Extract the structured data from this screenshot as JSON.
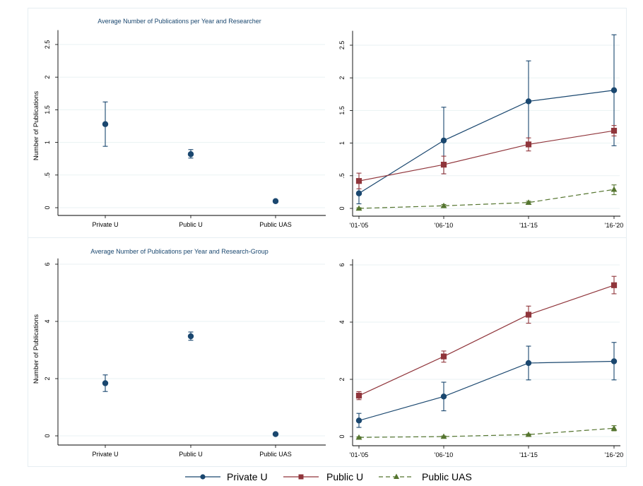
{
  "colors": {
    "private_u": "#1a476f",
    "public_u": "#90353b",
    "public_uas": "#55752f",
    "grid": "#eaf2f3",
    "axis": "#000000"
  },
  "legend": {
    "position": "bottom-center",
    "items": [
      {
        "label": "Private U",
        "marker": "circle",
        "line": "solid",
        "series": "private_u"
      },
      {
        "label": "Public U",
        "marker": "square",
        "line": "solid",
        "series": "public_u"
      },
      {
        "label": "Public UAS",
        "marker": "triangle",
        "line": "dashed",
        "series": "public_uas"
      }
    ]
  },
  "chart_data": [
    {
      "id": "researcher-overall",
      "type": "scatter",
      "title": "Average Number of Publications per Year and Researcher",
      "ylabel": "Number of Publications",
      "xlabel": "",
      "ylim": [
        -0.12,
        2.72
      ],
      "yticks": [
        0,
        0.5,
        1,
        1.5,
        2,
        2.5
      ],
      "ytick_labels": [
        "0",
        ".5",
        "1",
        "1.5",
        "2",
        "2.5"
      ],
      "categories": [
        "Private U",
        "Public U",
        "Public UAS"
      ],
      "grid": true,
      "series": [
        {
          "name": "Private U",
          "key": "private_u",
          "values": [
            1.28,
            0.82,
            0.1
          ],
          "ci_low": [
            0.94,
            0.76,
            0.08
          ],
          "ci_high": [
            1.62,
            0.89,
            0.12
          ]
        }
      ]
    },
    {
      "id": "researcher-trend",
      "type": "line",
      "title": "",
      "ylabel": "",
      "xlabel": "",
      "ylim": [
        -0.12,
        2.72
      ],
      "yticks": [
        0,
        0.5,
        1,
        1.5,
        2,
        2.5
      ],
      "ytick_labels": [
        "0",
        ".5",
        "1",
        "1.5",
        "2",
        "2.5"
      ],
      "categories": [
        "'01-'05",
        "'06-'10",
        "'11-'15",
        "'16-'20"
      ],
      "grid": true,
      "series": [
        {
          "name": "Private U",
          "key": "private_u",
          "values": [
            0.23,
            1.04,
            1.64,
            1.81
          ],
          "ci_low": [
            0.07,
            0.53,
            1.01,
            0.96
          ],
          "ci_high": [
            0.4,
            1.55,
            2.26,
            2.66
          ]
        },
        {
          "name": "Public U",
          "key": "public_u",
          "values": [
            0.42,
            0.67,
            0.98,
            1.19
          ],
          "ci_low": [
            0.3,
            0.53,
            0.88,
            1.11
          ],
          "ci_high": [
            0.54,
            0.8,
            1.08,
            1.27
          ]
        },
        {
          "name": "Public UAS",
          "key": "public_uas",
          "values": [
            0.0,
            0.04,
            0.09,
            0.29
          ],
          "ci_low": [
            -0.01,
            0.02,
            0.07,
            0.21
          ],
          "ci_high": [
            0.01,
            0.06,
            0.11,
            0.36
          ]
        }
      ]
    },
    {
      "id": "group-overall",
      "type": "scatter",
      "title": "Average Number of Publications per Year and Research-Group",
      "ylabel": "Number of Publications",
      "xlabel": "",
      "ylim": [
        -0.3,
        6.2
      ],
      "yticks": [
        0,
        2,
        4,
        6
      ],
      "ytick_labels": [
        "0",
        "2",
        "4",
        "6"
      ],
      "categories": [
        "Private U",
        "Public U",
        "Public UAS"
      ],
      "grid": true,
      "series": [
        {
          "name": "Private U",
          "key": "private_u",
          "values": [
            1.84,
            3.48,
            0.06
          ],
          "ci_low": [
            1.55,
            3.34,
            0.02
          ],
          "ci_high": [
            2.13,
            3.63,
            0.1
          ]
        }
      ]
    },
    {
      "id": "group-trend",
      "type": "line",
      "title": "",
      "ylabel": "",
      "xlabel": "",
      "ylim": [
        -0.3,
        6.2
      ],
      "yticks": [
        0,
        2,
        4,
        6
      ],
      "ytick_labels": [
        "0",
        "2",
        "4",
        "6"
      ],
      "categories": [
        "'01-'05",
        "'06-'10",
        "'11-'15",
        "'16-'20"
      ],
      "grid": true,
      "series": [
        {
          "name": "Private U",
          "key": "private_u",
          "values": [
            0.56,
            1.4,
            2.57,
            2.63
          ],
          "ci_low": [
            0.32,
            0.9,
            1.98,
            1.98
          ],
          "ci_high": [
            0.81,
            1.9,
            3.16,
            3.29
          ]
        },
        {
          "name": "Public U",
          "key": "public_u",
          "values": [
            1.43,
            2.8,
            4.26,
            5.29
          ],
          "ci_low": [
            1.29,
            2.6,
            3.96,
            4.99
          ],
          "ci_high": [
            1.57,
            2.99,
            4.56,
            5.6
          ]
        },
        {
          "name": "Public UAS",
          "key": "public_uas",
          "values": [
            -0.03,
            0.0,
            0.07,
            0.29
          ],
          "ci_low": [
            -0.05,
            -0.02,
            0.05,
            0.2
          ],
          "ci_high": [
            -0.01,
            0.02,
            0.09,
            0.38
          ]
        }
      ]
    }
  ]
}
